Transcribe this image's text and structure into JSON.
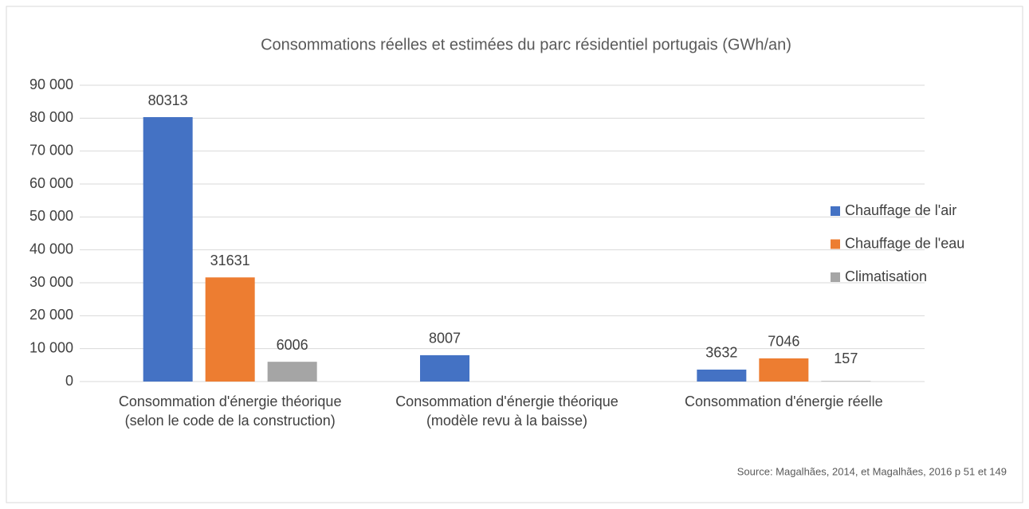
{
  "chart_data": {
    "type": "bar",
    "title": "Consommations réelles et estimées du parc résidentiel portugais  (GWh/an)",
    "categories": [
      "Consommation d'énergie théorique (selon le code de la construction)",
      "Consommation d'énergie théorique (modèle revu à la baisse)",
      "Consommation d'énergie réelle"
    ],
    "series": [
      {
        "name": "Chauffage de l'air",
        "color": "#4472c4",
        "values": [
          80313,
          8007,
          3632
        ]
      },
      {
        "name": "Chauffage de l'eau",
        "color": "#ed7d31",
        "values": [
          31631,
          null,
          7046
        ]
      },
      {
        "name": "Climatisation",
        "color": "#a5a5a5",
        "values": [
          6006,
          null,
          157
        ]
      }
    ],
    "ylim": [
      0,
      90000
    ],
    "yticks": [
      0,
      {
        "value": 10000,
        "label": "10 000"
      },
      {
        "value": 20000,
        "label": "20 000"
      },
      {
        "value": 30000,
        "label": "30 000"
      },
      {
        "value": 40000,
        "label": "40 000"
      },
      {
        "value": 50000,
        "label": "50 000"
      },
      {
        "value": 60000,
        "label": "60 000"
      },
      {
        "value": 70000,
        "label": "70 000"
      },
      {
        "value": 80000,
        "label": "80 000"
      },
      {
        "value": 90000,
        "label": "90 000"
      }
    ],
    "grid": true,
    "legend": "right",
    "source": "Source: Magalhães, 2014, et Magalhães, 2016 p 51 et 149"
  }
}
